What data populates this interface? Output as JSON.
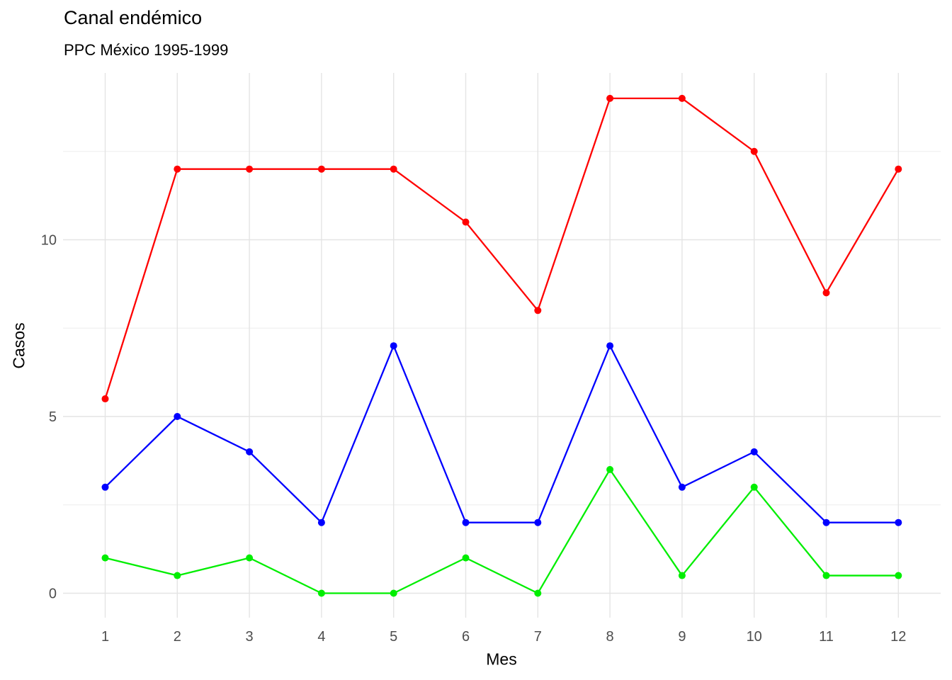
{
  "chart_data": {
    "type": "line",
    "title": "Canal endémico",
    "subtitle": "PPC México 1995-1999",
    "xlabel": "Mes",
    "ylabel": "Casos",
    "x": [
      1,
      2,
      3,
      4,
      5,
      6,
      7,
      8,
      9,
      10,
      11,
      12
    ],
    "x_tick_labels": [
      "1",
      "2",
      "3",
      "4",
      "5",
      "6",
      "7",
      "8",
      "9",
      "10",
      "11",
      "12"
    ],
    "yticks": [
      0,
      5,
      10
    ],
    "ytick_labels": [
      "0",
      "5",
      "10"
    ],
    "yticks_minor": [
      2.5,
      7.5,
      12.5
    ],
    "xlim": [
      0.42,
      12.59
    ],
    "ylim": [
      -0.69,
      14.72
    ],
    "grid": "horizontal major and minor, vertical major at each month, no axis lines, no tick marks",
    "legend_position": "none",
    "series": [
      {
        "name": "series-red-upper",
        "color": "#FF0000",
        "values": [
          5.5,
          12,
          12,
          12,
          12,
          10.5,
          8,
          14,
          14,
          12.5,
          8.5,
          12
        ]
      },
      {
        "name": "series-blue-middle",
        "color": "#0000FF",
        "values": [
          3,
          5,
          4,
          2,
          7,
          2,
          2,
          7,
          3,
          4,
          2,
          2
        ]
      },
      {
        "name": "series-green-lower",
        "color": "#00EE00",
        "values": [
          1,
          0.5,
          1,
          0,
          0,
          1,
          0,
          3.5,
          0.5,
          3,
          0.5,
          0.5
        ]
      }
    ]
  },
  "style_colors": {
    "background": "#FFFFFF",
    "grid_major": "#E4E4E4",
    "grid_minor": "#EDEDED",
    "tick_label_text": "#4D4D4D",
    "title_text": "#000000"
  }
}
